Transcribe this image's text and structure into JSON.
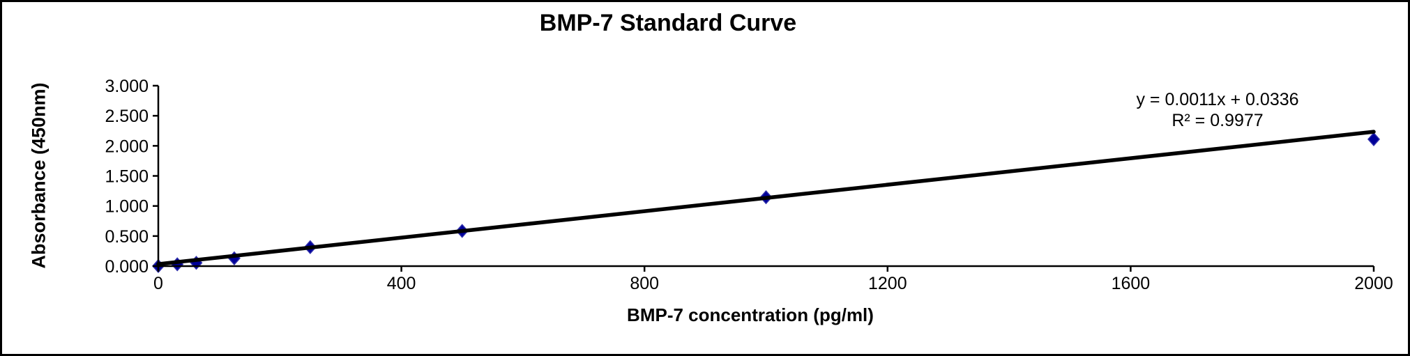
{
  "window": {
    "background_color": "#ffffff",
    "border_color": "#000000"
  },
  "chart_data": {
    "type": "scatter",
    "title": "BMP-7 Standard Curve",
    "xlabel": "BMP-7 concentration (pg/ml)",
    "ylabel": "Absorbance (450nm)",
    "xlim": [
      0,
      2000
    ],
    "ylim": [
      0,
      3
    ],
    "xticks": [
      0,
      400,
      800,
      1200,
      1600,
      2000
    ],
    "xtick_labels": [
      "0",
      "400",
      "800",
      "1200",
      "1600",
      "2000"
    ],
    "yticks": [
      0,
      0.5,
      1,
      1.5,
      2,
      2.5,
      3
    ],
    "ytick_labels": [
      "0.000",
      "0.500",
      "1.000",
      "1.500",
      "2.000",
      "2.500",
      "3.000"
    ],
    "grid": false,
    "legend": "none",
    "series": [
      {
        "name": "BMP-7 standards",
        "marker": "diamond",
        "marker_color": "#000099",
        "marker_edge_color": "#2e2eaa",
        "x": [
          0,
          31.25,
          62.5,
          125,
          250,
          500,
          1000,
          2000
        ],
        "y": [
          0.002,
          0.03,
          0.055,
          0.13,
          0.315,
          0.585,
          1.145,
          2.11
        ]
      }
    ],
    "trendline": {
      "slope": 0.0011,
      "intercept": 0.0336,
      "color": "#000000",
      "equation_label": "y = 0.0011x + 0.0336",
      "r_squared_label": "R² = 0.9977"
    },
    "axis_color": "#000000"
  }
}
